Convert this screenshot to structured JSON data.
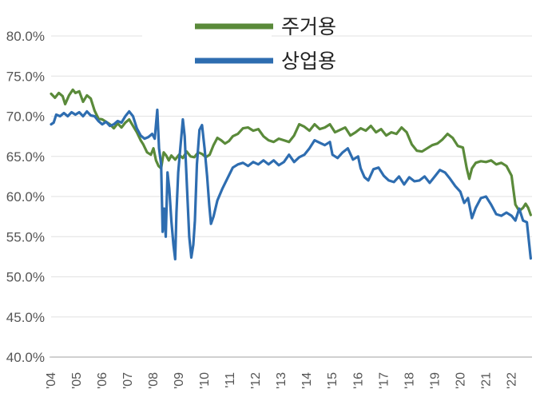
{
  "chart_data": {
    "type": "line",
    "title": "",
    "xlabel": "",
    "ylabel": "",
    "ylim": [
      40,
      80
    ],
    "xlim": [
      2004.0,
      2022.8
    ],
    "grid": true,
    "legend_position": "top-center",
    "y_ticks": [
      {
        "value": 80,
        "label": "80.0%"
      },
      {
        "value": 75,
        "label": "75.0%"
      },
      {
        "value": 70,
        "label": "70.0%"
      },
      {
        "value": 65,
        "label": "65.0%"
      },
      {
        "value": 60,
        "label": "60.0%"
      },
      {
        "value": 55,
        "label": "55.0%"
      },
      {
        "value": 50,
        "label": "50.0%"
      },
      {
        "value": 45,
        "label": "45.0%"
      },
      {
        "value": 40,
        "label": "40.0%"
      }
    ],
    "x_ticks": [
      {
        "value": 2004,
        "label": "'04"
      },
      {
        "value": 2005,
        "label": "'05"
      },
      {
        "value": 2006,
        "label": "'06"
      },
      {
        "value": 2007,
        "label": "'07"
      },
      {
        "value": 2008,
        "label": "'08"
      },
      {
        "value": 2009,
        "label": "'09"
      },
      {
        "value": 2010,
        "label": "'10"
      },
      {
        "value": 2011,
        "label": "'11"
      },
      {
        "value": 2012,
        "label": "'12"
      },
      {
        "value": 2013,
        "label": "'13"
      },
      {
        "value": 2014,
        "label": "'14"
      },
      {
        "value": 2015,
        "label": "'15"
      },
      {
        "value": 2016,
        "label": "'16"
      },
      {
        "value": 2017,
        "label": "'17"
      },
      {
        "value": 2018,
        "label": "'18"
      },
      {
        "value": 2019,
        "label": "'19"
      },
      {
        "value": 2020,
        "label": "'20"
      },
      {
        "value": 2021,
        "label": "'21"
      },
      {
        "value": 2022,
        "label": "'22"
      }
    ],
    "series": [
      {
        "name": "주거용",
        "color": "#5a8a3a",
        "points": [
          [
            2004.0,
            72.8
          ],
          [
            2004.15,
            72.3
          ],
          [
            2004.3,
            72.9
          ],
          [
            2004.45,
            72.5
          ],
          [
            2004.55,
            71.5
          ],
          [
            2004.7,
            72.6
          ],
          [
            2004.85,
            73.3
          ],
          [
            2004.95,
            72.9
          ],
          [
            2005.1,
            73.1
          ],
          [
            2005.25,
            71.8
          ],
          [
            2005.4,
            72.6
          ],
          [
            2005.55,
            72.2
          ],
          [
            2005.7,
            70.7
          ],
          [
            2005.85,
            69.7
          ],
          [
            2006.0,
            69.6
          ],
          [
            2006.15,
            69.3
          ],
          [
            2006.3,
            69.0
          ],
          [
            2006.45,
            68.5
          ],
          [
            2006.6,
            69.1
          ],
          [
            2006.75,
            68.6
          ],
          [
            2006.9,
            69.2
          ],
          [
            2007.05,
            69.6
          ],
          [
            2007.2,
            68.8
          ],
          [
            2007.35,
            68.0
          ],
          [
            2007.5,
            67.0
          ],
          [
            2007.6,
            66.5
          ],
          [
            2007.75,
            65.5
          ],
          [
            2007.9,
            65.2
          ],
          [
            2008.0,
            66.0
          ],
          [
            2008.1,
            64.5
          ],
          [
            2008.2,
            63.8
          ],
          [
            2008.3,
            63.5
          ],
          [
            2008.4,
            65.5
          ],
          [
            2008.5,
            65.1
          ],
          [
            2008.6,
            64.5
          ],
          [
            2008.7,
            65.1
          ],
          [
            2008.85,
            64.6
          ],
          [
            2009.0,
            65.2
          ],
          [
            2009.15,
            64.8
          ],
          [
            2009.3,
            65.6
          ],
          [
            2009.45,
            65.0
          ],
          [
            2009.6,
            64.9
          ],
          [
            2009.75,
            65.5
          ],
          [
            2009.9,
            65.3
          ],
          [
            2010.05,
            64.9
          ],
          [
            2010.2,
            65.2
          ],
          [
            2010.35,
            66.4
          ],
          [
            2010.5,
            67.3
          ],
          [
            2010.65,
            67.0
          ],
          [
            2010.8,
            66.6
          ],
          [
            2010.95,
            66.9
          ],
          [
            2011.1,
            67.5
          ],
          [
            2011.3,
            67.8
          ],
          [
            2011.5,
            68.5
          ],
          [
            2011.7,
            68.6
          ],
          [
            2011.9,
            68.2
          ],
          [
            2012.1,
            68.4
          ],
          [
            2012.3,
            67.5
          ],
          [
            2012.5,
            67.0
          ],
          [
            2012.7,
            66.8
          ],
          [
            2012.9,
            67.2
          ],
          [
            2013.1,
            67.0
          ],
          [
            2013.3,
            66.8
          ],
          [
            2013.5,
            67.6
          ],
          [
            2013.7,
            69.0
          ],
          [
            2013.9,
            68.7
          ],
          [
            2014.1,
            68.2
          ],
          [
            2014.3,
            69.0
          ],
          [
            2014.5,
            68.4
          ],
          [
            2014.7,
            68.6
          ],
          [
            2014.9,
            69.0
          ],
          [
            2015.1,
            68.0
          ],
          [
            2015.3,
            68.3
          ],
          [
            2015.5,
            68.6
          ],
          [
            2015.7,
            67.6
          ],
          [
            2015.9,
            68.0
          ],
          [
            2016.1,
            68.5
          ],
          [
            2016.3,
            68.2
          ],
          [
            2016.5,
            68.8
          ],
          [
            2016.7,
            68.0
          ],
          [
            2016.9,
            68.4
          ],
          [
            2017.1,
            67.6
          ],
          [
            2017.3,
            68.0
          ],
          [
            2017.5,
            67.8
          ],
          [
            2017.7,
            68.6
          ],
          [
            2017.9,
            68.0
          ],
          [
            2018.1,
            66.5
          ],
          [
            2018.3,
            65.7
          ],
          [
            2018.5,
            65.6
          ],
          [
            2018.7,
            66.0
          ],
          [
            2018.9,
            66.4
          ],
          [
            2019.1,
            66.6
          ],
          [
            2019.3,
            67.1
          ],
          [
            2019.5,
            67.8
          ],
          [
            2019.7,
            67.3
          ],
          [
            2019.9,
            66.3
          ],
          [
            2020.1,
            66.1
          ],
          [
            2020.25,
            63.5
          ],
          [
            2020.35,
            62.2
          ],
          [
            2020.45,
            63.5
          ],
          [
            2020.6,
            64.2
          ],
          [
            2020.8,
            64.4
          ],
          [
            2021.0,
            64.3
          ],
          [
            2021.2,
            64.5
          ],
          [
            2021.4,
            64.0
          ],
          [
            2021.6,
            64.2
          ],
          [
            2021.8,
            63.8
          ],
          [
            2022.0,
            62.6
          ],
          [
            2022.15,
            59.0
          ],
          [
            2022.3,
            58.2
          ],
          [
            2022.45,
            58.6
          ],
          [
            2022.55,
            59.1
          ],
          [
            2022.65,
            58.6
          ],
          [
            2022.75,
            57.7
          ]
        ]
      },
      {
        "name": "상업용",
        "color": "#2e6db0",
        "points": [
          [
            2004.0,
            69.0
          ],
          [
            2004.1,
            69.2
          ],
          [
            2004.2,
            70.2
          ],
          [
            2004.35,
            70.0
          ],
          [
            2004.5,
            70.4
          ],
          [
            2004.65,
            70.0
          ],
          [
            2004.8,
            70.5
          ],
          [
            2004.95,
            70.2
          ],
          [
            2005.1,
            70.5
          ],
          [
            2005.25,
            70.0
          ],
          [
            2005.4,
            70.6
          ],
          [
            2005.55,
            70.1
          ],
          [
            2005.7,
            70.0
          ],
          [
            2005.85,
            69.4
          ],
          [
            2006.0,
            69.0
          ],
          [
            2006.15,
            69.3
          ],
          [
            2006.3,
            68.8
          ],
          [
            2006.45,
            69.0
          ],
          [
            2006.6,
            69.4
          ],
          [
            2006.75,
            69.2
          ],
          [
            2006.9,
            70.0
          ],
          [
            2007.05,
            70.6
          ],
          [
            2007.2,
            70.0
          ],
          [
            2007.35,
            68.5
          ],
          [
            2007.5,
            67.6
          ],
          [
            2007.65,
            67.2
          ],
          [
            2007.8,
            67.4
          ],
          [
            2007.95,
            67.8
          ],
          [
            2008.05,
            67.2
          ],
          [
            2008.15,
            70.8
          ],
          [
            2008.22,
            66.0
          ],
          [
            2008.3,
            64.0
          ],
          [
            2008.36,
            55.6
          ],
          [
            2008.42,
            58.5
          ],
          [
            2008.48,
            55.0
          ],
          [
            2008.55,
            63.0
          ],
          [
            2008.62,
            61.0
          ],
          [
            2008.7,
            57.0
          ],
          [
            2008.78,
            54.0
          ],
          [
            2008.85,
            52.2
          ],
          [
            2008.9,
            58.0
          ],
          [
            2008.97,
            63.0
          ],
          [
            2009.05,
            66.0
          ],
          [
            2009.15,
            69.6
          ],
          [
            2009.22,
            67.5
          ],
          [
            2009.3,
            62.0
          ],
          [
            2009.4,
            55.0
          ],
          [
            2009.48,
            52.4
          ],
          [
            2009.56,
            54.0
          ],
          [
            2009.62,
            57.0
          ],
          [
            2009.7,
            64.0
          ],
          [
            2009.8,
            68.3
          ],
          [
            2009.9,
            68.9
          ],
          [
            2010.0,
            66.0
          ],
          [
            2010.1,
            62.5
          ],
          [
            2010.18,
            59.0
          ],
          [
            2010.25,
            56.6
          ],
          [
            2010.35,
            57.5
          ],
          [
            2010.5,
            59.5
          ],
          [
            2010.7,
            61.0
          ],
          [
            2010.9,
            62.3
          ],
          [
            2011.1,
            63.6
          ],
          [
            2011.3,
            64.0
          ],
          [
            2011.5,
            64.2
          ],
          [
            2011.7,
            63.8
          ],
          [
            2011.9,
            64.3
          ],
          [
            2012.1,
            64.0
          ],
          [
            2012.3,
            64.5
          ],
          [
            2012.5,
            64.0
          ],
          [
            2012.7,
            64.5
          ],
          [
            2012.9,
            63.9
          ],
          [
            2013.1,
            64.3
          ],
          [
            2013.3,
            65.2
          ],
          [
            2013.5,
            64.3
          ],
          [
            2013.7,
            64.9
          ],
          [
            2013.9,
            65.2
          ],
          [
            2014.1,
            66.0
          ],
          [
            2014.3,
            67.0
          ],
          [
            2014.5,
            66.7
          ],
          [
            2014.7,
            66.4
          ],
          [
            2014.9,
            66.8
          ],
          [
            2015.0,
            65.2
          ],
          [
            2015.2,
            64.8
          ],
          [
            2015.4,
            65.5
          ],
          [
            2015.6,
            66.0
          ],
          [
            2015.8,
            64.6
          ],
          [
            2016.0,
            65.0
          ],
          [
            2016.1,
            63.5
          ],
          [
            2016.25,
            62.4
          ],
          [
            2016.4,
            62.0
          ],
          [
            2016.6,
            63.4
          ],
          [
            2016.8,
            63.6
          ],
          [
            2017.0,
            62.6
          ],
          [
            2017.2,
            62.0
          ],
          [
            2017.4,
            61.8
          ],
          [
            2017.6,
            62.5
          ],
          [
            2017.8,
            61.5
          ],
          [
            2018.0,
            62.4
          ],
          [
            2018.2,
            61.9
          ],
          [
            2018.4,
            62.0
          ],
          [
            2018.6,
            62.5
          ],
          [
            2018.8,
            61.7
          ],
          [
            2019.0,
            62.5
          ],
          [
            2019.2,
            63.3
          ],
          [
            2019.4,
            63.0
          ],
          [
            2019.6,
            62.2
          ],
          [
            2019.8,
            61.3
          ],
          [
            2020.0,
            60.6
          ],
          [
            2020.15,
            59.2
          ],
          [
            2020.3,
            59.8
          ],
          [
            2020.45,
            57.3
          ],
          [
            2020.6,
            58.6
          ],
          [
            2020.8,
            59.8
          ],
          [
            2021.0,
            60.0
          ],
          [
            2021.2,
            59.0
          ],
          [
            2021.4,
            57.8
          ],
          [
            2021.6,
            57.6
          ],
          [
            2021.8,
            58.0
          ],
          [
            2022.0,
            57.6
          ],
          [
            2022.15,
            57.0
          ],
          [
            2022.3,
            58.5
          ],
          [
            2022.45,
            57.0
          ],
          [
            2022.6,
            56.8
          ],
          [
            2022.75,
            52.3
          ]
        ]
      }
    ]
  }
}
